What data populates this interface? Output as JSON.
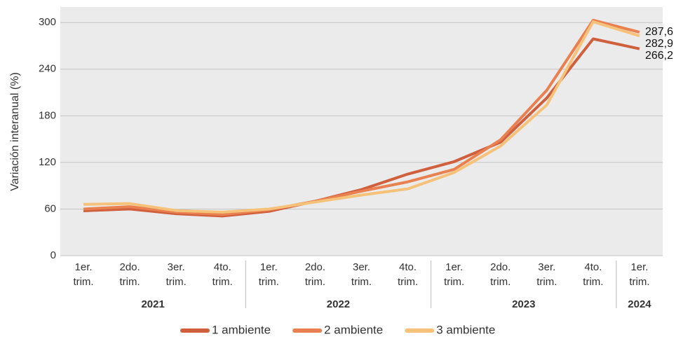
{
  "chart_data": {
    "type": "line",
    "y_label": "Variación interanual (%)",
    "groups": [
      {
        "label": "2021",
        "categories": [
          [
            "1er.",
            "trim."
          ],
          [
            "2do.",
            "trim."
          ],
          [
            "3er.",
            "trim."
          ],
          [
            "4to.",
            "trim."
          ]
        ]
      },
      {
        "label": "2022",
        "categories": [
          [
            "1er.",
            "trim."
          ],
          [
            "2do.",
            "trim."
          ],
          [
            "3er.",
            "trim."
          ],
          [
            "4to.",
            "trim."
          ]
        ]
      },
      {
        "label": "2023",
        "categories": [
          [
            "1er.",
            "trim."
          ],
          [
            "2do.",
            "trim."
          ],
          [
            "3er.",
            "trim."
          ],
          [
            "4to.",
            "trim."
          ]
        ]
      },
      {
        "label": "2024",
        "categories": [
          [
            "1er.",
            "trim."
          ]
        ]
      }
    ],
    "series": [
      {
        "name": "1 ambiente",
        "color": "#cf5f3d",
        "values": [
          57.7,
          60,
          54,
          51,
          57,
          70,
          85,
          105,
          121,
          146,
          203,
          279,
          266.2
        ],
        "value_labels": [
          null,
          null,
          null,
          null,
          null,
          null,
          null,
          null,
          null,
          null,
          null,
          null,
          "266,2"
        ]
      },
      {
        "name": "2 ambiente",
        "color": "#e8804f",
        "values": [
          60,
          63,
          56,
          53,
          59,
          70,
          83,
          95,
          111,
          149,
          213,
          303,
          287.6
        ],
        "value_labels": [
          null,
          null,
          null,
          null,
          null,
          null,
          null,
          null,
          null,
          null,
          null,
          null,
          "287,6"
        ]
      },
      {
        "name": "3 ambiente",
        "color": "#f6c27a",
        "values": [
          66,
          67,
          58,
          56,
          60,
          69,
          78,
          86,
          107,
          141,
          194,
          301,
          282.9
        ],
        "value_labels": [
          null,
          null,
          null,
          null,
          null,
          null,
          null,
          null,
          null,
          null,
          null,
          null,
          "282,9"
        ]
      }
    ],
    "ylim": [
      0,
      320
    ],
    "yticks": [
      0,
      60,
      120,
      180,
      240,
      300
    ],
    "grid": true
  }
}
